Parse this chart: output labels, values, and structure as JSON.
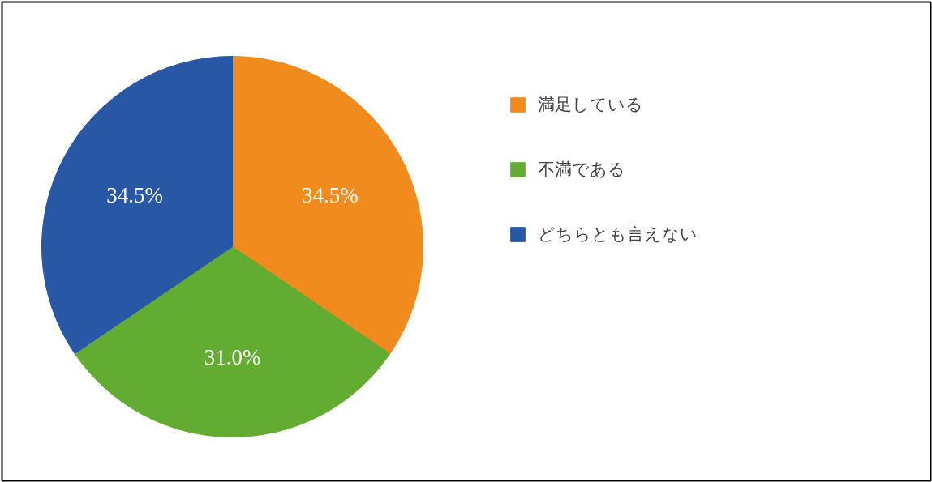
{
  "chart_data": {
    "type": "pie",
    "categories": [
      "満足している",
      "不満である",
      "どちらとも言えない"
    ],
    "values": [
      34.5,
      31.0,
      34.5
    ],
    "colors": [
      "#f18b1e",
      "#62ad31",
      "#2757a5"
    ],
    "value_labels": [
      "34.5%",
      "31.0%",
      "34.5%"
    ],
    "legend": "right"
  }
}
